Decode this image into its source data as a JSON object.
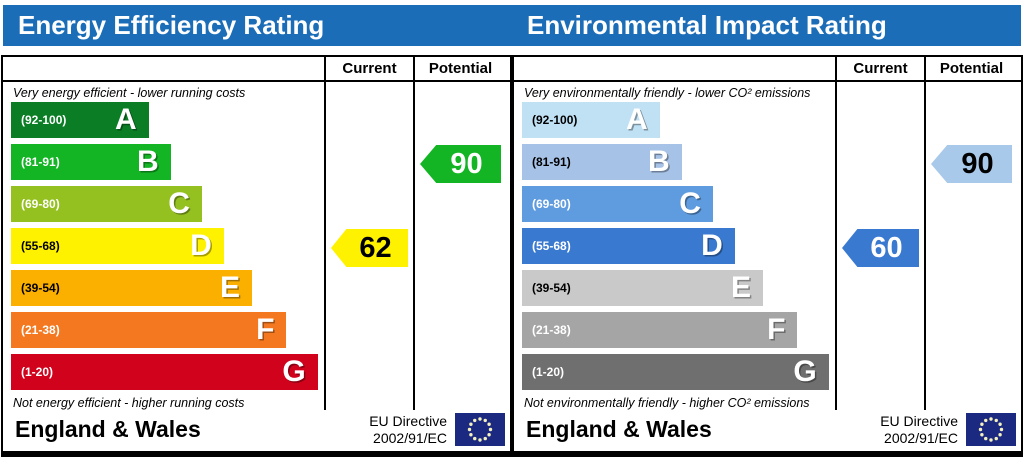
{
  "colors": {
    "header_bar": "#1b6db8",
    "title_text": "#ffffff",
    "border": "#000000",
    "flag_bg": "#1b2a80",
    "flag_stars": "#f5f1bf"
  },
  "chart_data": [
    {
      "type": "bar",
      "title": "Energy Efficiency Rating",
      "columns": [
        "Current",
        "Potential"
      ],
      "top_caption": "Very energy efficient - lower running costs",
      "bottom_caption": "Not energy efficient - higher running costs",
      "bands": [
        {
          "letter": "A",
          "range": "(92-100)",
          "min": 92,
          "max": 100,
          "color": "#0a7d25",
          "range_text_color": "#ffffff",
          "width_pct": 44
        },
        {
          "letter": "B",
          "range": "(81-91)",
          "min": 81,
          "max": 91,
          "color": "#13b524",
          "range_text_color": "#ffffff",
          "width_pct": 51
        },
        {
          "letter": "C",
          "range": "(69-80)",
          "min": 69,
          "max": 80,
          "color": "#94c11f",
          "range_text_color": "#ffffff",
          "width_pct": 61
        },
        {
          "letter": "D",
          "range": "(55-68)",
          "min": 55,
          "max": 68,
          "color": "#fff200",
          "range_text_color": "#000000",
          "width_pct": 68
        },
        {
          "letter": "E",
          "range": "(39-54)",
          "min": 39,
          "max": 54,
          "color": "#fbb000",
          "range_text_color": "#000000",
          "width_pct": 77
        },
        {
          "letter": "F",
          "range": "(21-38)",
          "min": 21,
          "max": 38,
          "color": "#f4781f",
          "range_text_color": "#ffffff",
          "width_pct": 88
        },
        {
          "letter": "G",
          "range": "(1-20)",
          "min": 1,
          "max": 20,
          "color": "#d0021c",
          "range_text_color": "#ffffff",
          "width_pct": 98
        }
      ],
      "current": {
        "value": 62,
        "band": "D",
        "arrow_color": "#fff200",
        "value_text_color": "#000000"
      },
      "potential": {
        "value": 90,
        "band": "B",
        "arrow_color": "#13b524",
        "value_text_color": "#ffffff"
      },
      "footer": {
        "region": "England & Wales",
        "directive": [
          "EU Directive",
          "2002/91/EC"
        ]
      }
    },
    {
      "type": "bar",
      "title": "Environmental Impact Rating",
      "columns": [
        "Current",
        "Potential"
      ],
      "top_caption": "Very environmentally friendly - lower CO² emissions",
      "bottom_caption": "Not environmentally friendly - higher CO² emissions",
      "bands": [
        {
          "letter": "A",
          "range": "(92-100)",
          "min": 92,
          "max": 100,
          "color": "#c0e0f4",
          "range_text_color": "#000000",
          "width_pct": 44
        },
        {
          "letter": "B",
          "range": "(81-91)",
          "min": 81,
          "max": 91,
          "color": "#a6c2e7",
          "range_text_color": "#000000",
          "width_pct": 51
        },
        {
          "letter": "C",
          "range": "(69-80)",
          "min": 69,
          "max": 80,
          "color": "#5f9bdf",
          "range_text_color": "#ffffff",
          "width_pct": 61
        },
        {
          "letter": "D",
          "range": "(55-68)",
          "min": 55,
          "max": 68,
          "color": "#3a79d0",
          "range_text_color": "#ffffff",
          "width_pct": 68
        },
        {
          "letter": "E",
          "range": "(39-54)",
          "min": 39,
          "max": 54,
          "color": "#c9c9c9",
          "range_text_color": "#000000",
          "width_pct": 77
        },
        {
          "letter": "F",
          "range": "(21-38)",
          "min": 21,
          "max": 38,
          "color": "#a5a5a5",
          "range_text_color": "#ffffff",
          "width_pct": 88
        },
        {
          "letter": "G",
          "range": "(1-20)",
          "min": 1,
          "max": 20,
          "color": "#6f6f6f",
          "range_text_color": "#ffffff",
          "width_pct": 98
        }
      ],
      "current": {
        "value": 60,
        "band": "D",
        "arrow_color": "#3a79d0",
        "value_text_color": "#ffffff"
      },
      "potential": {
        "value": 90,
        "band": "B",
        "arrow_color": "#a9c9ea",
        "value_text_color": "#000000"
      },
      "footer": {
        "region": "England & Wales",
        "directive": [
          "EU Directive",
          "2002/91/EC"
        ]
      }
    }
  ]
}
